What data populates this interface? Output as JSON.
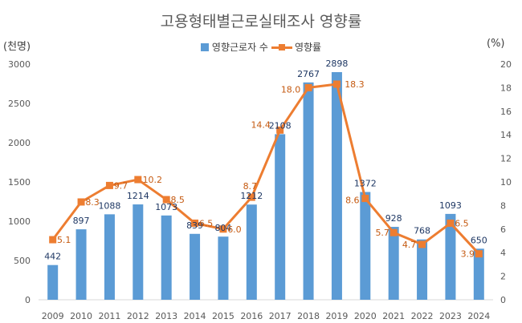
{
  "title": "고용형태별근로실태조사 영향률",
  "left_unit": "(천명)",
  "right_unit": "(%)",
  "chart_data": {
    "type": "bar",
    "title": "고용형태별근로실태조사 영향률",
    "categories": [
      "2009",
      "2010",
      "2011",
      "2012",
      "2013",
      "2014",
      "2015",
      "2016",
      "2017",
      "2018",
      "2019",
      "2020",
      "2021",
      "2022",
      "2023",
      "2024"
    ],
    "series": [
      {
        "name": "영향근로자 수",
        "type": "bar",
        "axis": "left",
        "values": [
          442,
          897,
          1088,
          1214,
          1073,
          839,
          804,
          1212,
          2108,
          2767,
          2898,
          1372,
          928,
          768,
          1093,
          650
        ]
      },
      {
        "name": "영향률",
        "type": "line",
        "axis": "right",
        "values": [
          5.1,
          8.3,
          9.7,
          10.2,
          8.5,
          6.5,
          6.0,
          8.7,
          14.4,
          18.0,
          18.3,
          8.6,
          5.7,
          4.7,
          6.5,
          3.9
        ],
        "labels": [
          "5.1",
          "8.3",
          "9.7",
          "10.2",
          "8.5",
          "6.5",
          "6.0",
          "8.7",
          "14.4",
          "18.0",
          "18.3",
          "8.6",
          "5.7",
          "4.7",
          "6.5",
          "3.9"
        ]
      }
    ],
    "y_left": {
      "min": 0,
      "max": 3000,
      "ticks": [
        0,
        500,
        1000,
        1500,
        2000,
        2500,
        3000
      ]
    },
    "y_right": {
      "min": 0,
      "max": 20,
      "ticks": [
        0,
        2,
        4,
        6,
        8,
        10,
        12,
        14,
        16,
        18,
        20
      ]
    },
    "legend_position": "top",
    "grid": false,
    "colors": {
      "bar": "#5b9bd5",
      "line": "#ed7d31",
      "bar_label": "#1f3864",
      "line_label": "#c55a11"
    }
  }
}
